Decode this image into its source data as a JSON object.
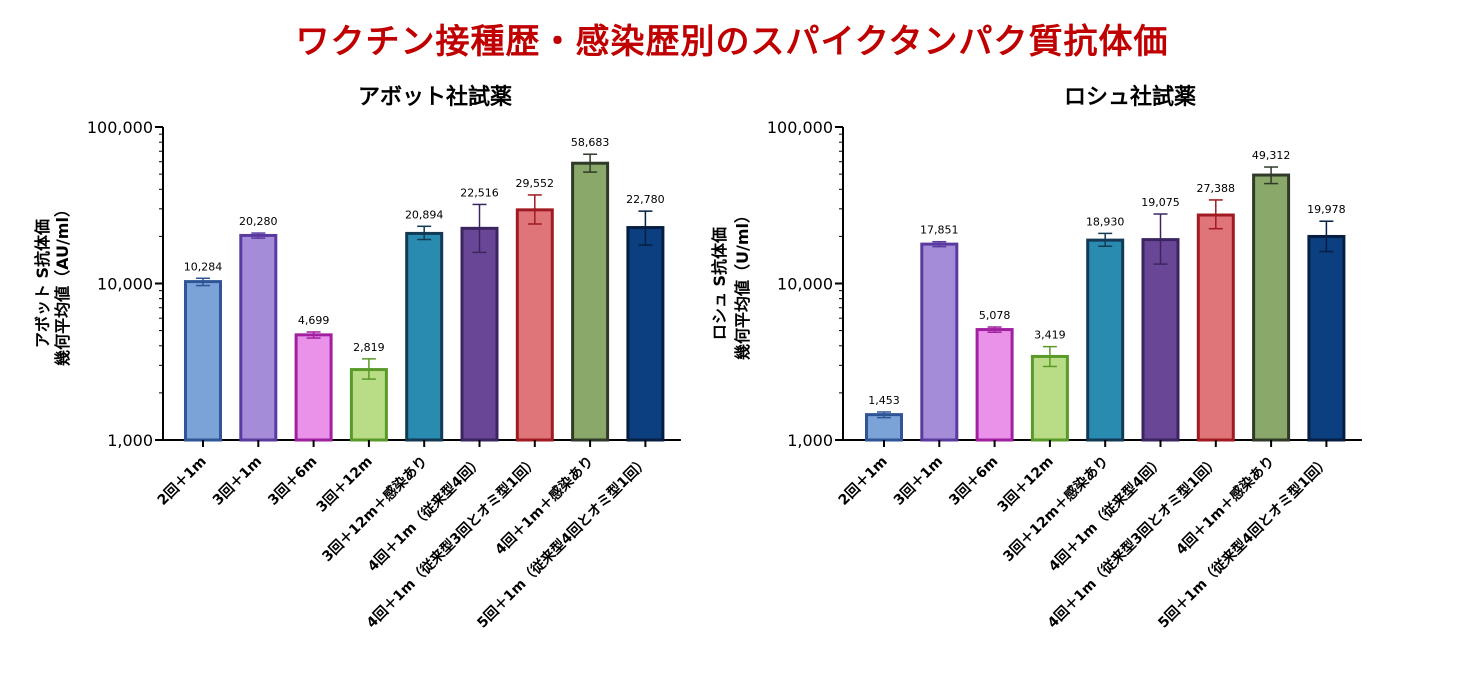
{
  "page_title": "ワクチン接種歴・感染歴別のスパイクタンパク質抗体価",
  "chart_data": [
    {
      "type": "bar",
      "title": "アボット社試薬",
      "ylabel_line1": "アボット S抗体価",
      "ylabel_line2": "幾何平均値（AU/ml）",
      "yscale": "log",
      "ylim": [
        1000,
        100000
      ],
      "yticks": [
        "1,000",
        "10,000",
        "100,000"
      ],
      "categories": [
        "2回＋1m",
        "3回＋1m",
        "3回＋6m",
        "3回＋12m",
        "3回＋12m＋感染あり",
        "4回＋1m（従来型4回）",
        "4回＋1m（従来型3回とオミ型1回）",
        "4回＋1m＋感染あり",
        "5回＋1m（従来型4回とオミ型1回）"
      ],
      "values": [
        10284,
        20280,
        4699,
        2819,
        20894,
        22516,
        29552,
        58683,
        22780
      ],
      "value_labels": [
        "10,284",
        "20,280",
        "4,699",
        "2,819",
        "20,894",
        "22,516",
        "29,552",
        "58,683",
        "22,780"
      ],
      "error_low": [
        9700,
        19500,
        4480,
        2450,
        19100,
        15800,
        24000,
        51500,
        17600
      ],
      "error_high": [
        10800,
        21000,
        4900,
        3300,
        23200,
        32000,
        36800,
        67000,
        29000
      ],
      "grid": false,
      "legend": "none"
    },
    {
      "type": "bar",
      "title": "ロシュ社試薬",
      "ylabel_line1": "ロシュ S抗体価",
      "ylabel_line2": "幾何平均値（U/ml）",
      "yscale": "log",
      "ylim": [
        1000,
        100000
      ],
      "yticks": [
        "1,000",
        "10,000",
        "100,000"
      ],
      "categories": [
        "2回＋1m",
        "3回＋1m",
        "3回＋6m",
        "3回＋12m",
        "3回＋12m＋感染あり",
        "4回＋1m（従来型4回）",
        "4回＋1m（従来型3回とオミ型1回）",
        "4回＋1m＋感染あり",
        "5回＋1m（従来型4回とオミ型1回）"
      ],
      "values": [
        1453,
        17851,
        5078,
        3419,
        18930,
        19075,
        27388,
        49312,
        19978
      ],
      "value_labels": [
        "1,453",
        "17,851",
        "5,078",
        "3,419",
        "18,930",
        "19,075",
        "27,388",
        "49,312",
        "19,978"
      ],
      "error_low": [
        1390,
        17200,
        4880,
        2950,
        17300,
        13300,
        22400,
        43500,
        16000
      ],
      "error_high": [
        1510,
        18500,
        5270,
        3950,
        20900,
        27800,
        34200,
        55500,
        25000
      ],
      "grid": false,
      "legend": "none"
    }
  ],
  "bar_colors": [
    {
      "fill": "#7ba3d8",
      "stroke": "#2f5597"
    },
    {
      "fill": "#a58cd8",
      "stroke": "#5b3aa0"
    },
    {
      "fill": "#ea92ea",
      "stroke": "#a020a0"
    },
    {
      "fill": "#b9dc86",
      "stroke": "#5a9a2a"
    },
    {
      "fill": "#2a8bb0",
      "stroke": "#123a55"
    },
    {
      "fill": "#6a4796",
      "stroke": "#3a2560"
    },
    {
      "fill": "#e07579",
      "stroke": "#a01a22"
    },
    {
      "fill": "#8aa86a",
      "stroke": "#303a28"
    },
    {
      "fill": "#0c3f80",
      "stroke": "#061e42"
    }
  ]
}
